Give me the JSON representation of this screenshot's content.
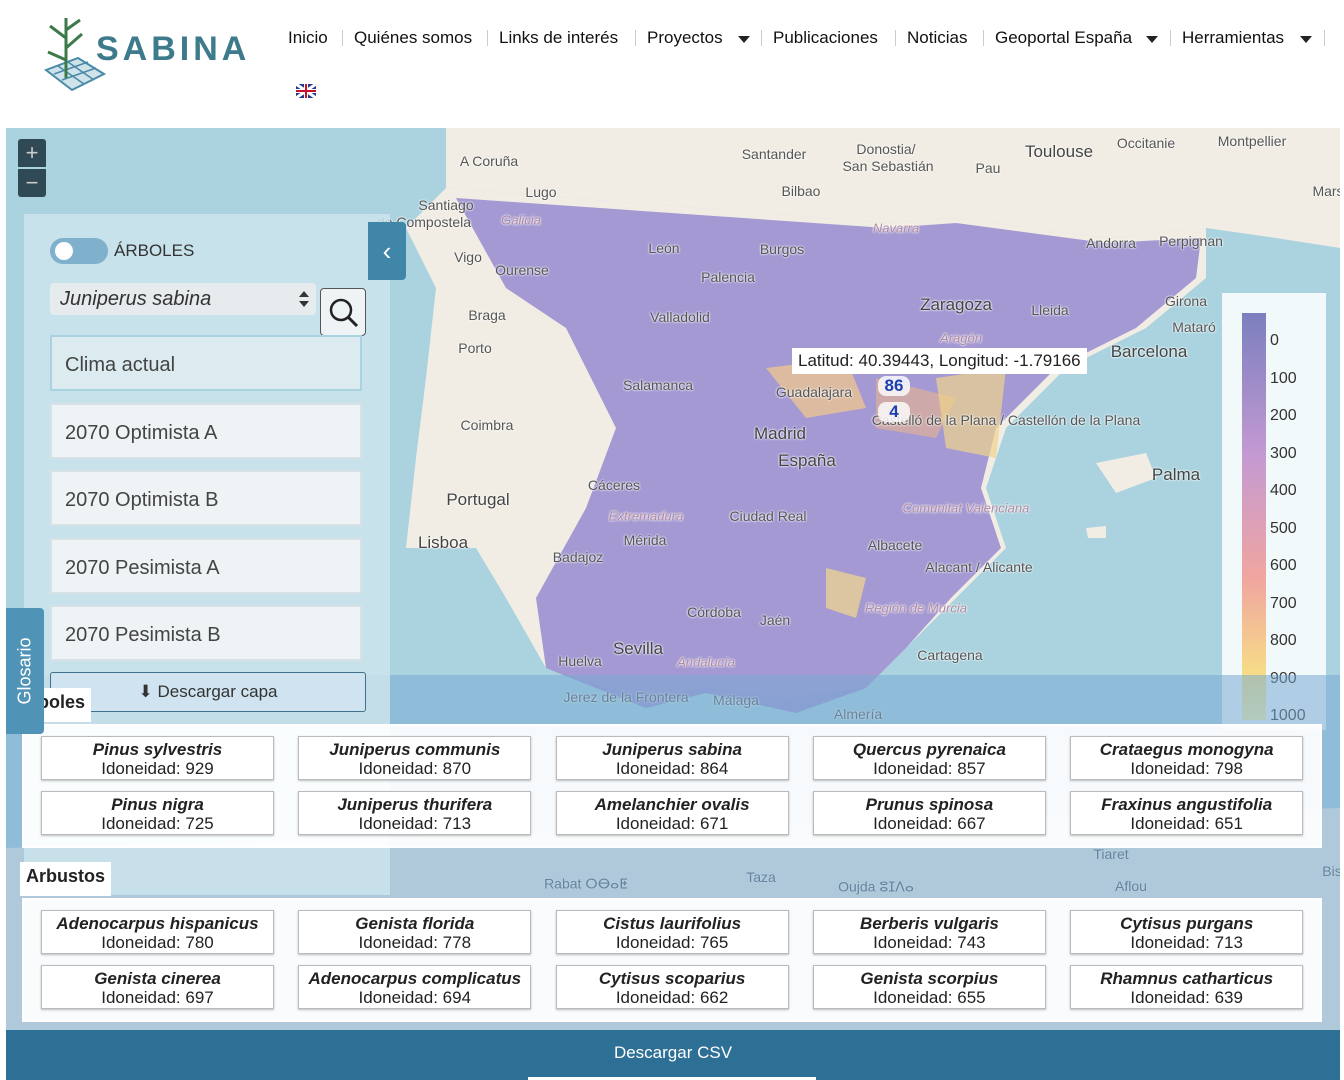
{
  "header": {
    "logo_text": "SABINA",
    "nav": [
      "Inicio",
      "Quiénes somos",
      "Links de interés",
      "Proyectos",
      "Publicaciones",
      "Noticias",
      "Geoportal España",
      "Herramientas"
    ]
  },
  "map": {
    "zoom_in": "+",
    "zoom_out": "−",
    "tooltip": "Latitud: 40.39443, Longitud: -1.79166",
    "marker_values": [
      86,
      4
    ],
    "legend_ticks": [
      0,
      100,
      200,
      300,
      400,
      500,
      600,
      700,
      800,
      900,
      1000
    ],
    "labels": [
      "A Coruña",
      "Santander",
      "Donostia/",
      "San Sebastián",
      "Toulouse",
      "Occitanie",
      "Montpellier",
      "Mars",
      "Pau",
      "Bilbao",
      "Lugo",
      "Santiago",
      "de Compostela",
      "Galicia",
      "Navarra",
      "Andorra",
      "Perpignan",
      "Vigo",
      "León",
      "Burgos",
      "Ourense",
      "Palencia",
      "Zaragoza",
      "Lleida",
      "Girona",
      "Mataró",
      "Braga",
      "Valladolid",
      "Porto",
      "Barcelona",
      "Salamanca",
      "Guadalajara",
      "Coimbra",
      "Madrid",
      "España",
      "Palma",
      "Portugal",
      "Cáceres",
      "Ciudad Real",
      "Lisboa",
      "Badajoz",
      "Mérida",
      "Albacete",
      "Alacant / Alicante",
      "Córdoba",
      "Jaén",
      "Sevilla",
      "Huelva",
      "Cartagena",
      "Jerez de la Frontera",
      "Málaga",
      "Almería",
      "Castelló de la Plana / Castellón de la Plana",
      "Comunitat Valenciana",
      "Región de Murcia",
      "Andalucía",
      "Extremadura",
      "Aragón",
      "Rabat ⵔⴱⴰⵟ",
      "Taza",
      "Oujda ⵓⵊⴷⴰ",
      "Aflou",
      "Tiaret",
      "Bis"
    ]
  },
  "panel": {
    "collapse": "‹",
    "toggle_label": "ÁRBOLES",
    "species_select": "Juniperus sabina",
    "scenarios": [
      "Clima actual",
      "2070 Optimista A",
      "2070 Optimista B",
      "2070 Pesimista A",
      "2070 Pesimista B"
    ],
    "download": "Descargar capa",
    "glossary": "Glosario"
  },
  "results": {
    "score_label": "Idoneidad: ",
    "sections": [
      {
        "title": "Árboles",
        "items": [
          {
            "name": "Pinus sylvestris",
            "score": 929
          },
          {
            "name": "Juniperus communis",
            "score": 870
          },
          {
            "name": "Juniperus sabina",
            "score": 864
          },
          {
            "name": "Quercus pyrenaica",
            "score": 857
          },
          {
            "name": "Crataegus monogyna",
            "score": 798
          },
          {
            "name": "Pinus nigra",
            "score": 725
          },
          {
            "name": "Juniperus thurifera",
            "score": 713
          },
          {
            "name": "Amelanchier ovalis",
            "score": 671
          },
          {
            "name": "Prunus spinosa",
            "score": 667
          },
          {
            "name": "Fraxinus angustifolia",
            "score": 651
          }
        ]
      },
      {
        "title": "Arbustos",
        "items": [
          {
            "name": "Adenocarpus hispanicus",
            "score": 780
          },
          {
            "name": "Genista florida",
            "score": 778
          },
          {
            "name": "Cistus laurifolius",
            "score": 765
          },
          {
            "name": "Berberis vulgaris",
            "score": 743
          },
          {
            "name": "Cytisus purgans",
            "score": 713
          },
          {
            "name": "Genista cinerea",
            "score": 697
          },
          {
            "name": "Adenocarpus complicatus",
            "score": 694
          },
          {
            "name": "Cytisus scoparius",
            "score": 662
          },
          {
            "name": "Genista scorpius",
            "score": 655
          },
          {
            "name": "Rhamnus catharticus",
            "score": 639
          }
        ]
      }
    ]
  },
  "footer": {
    "download_csv": "Descargar CSV"
  }
}
